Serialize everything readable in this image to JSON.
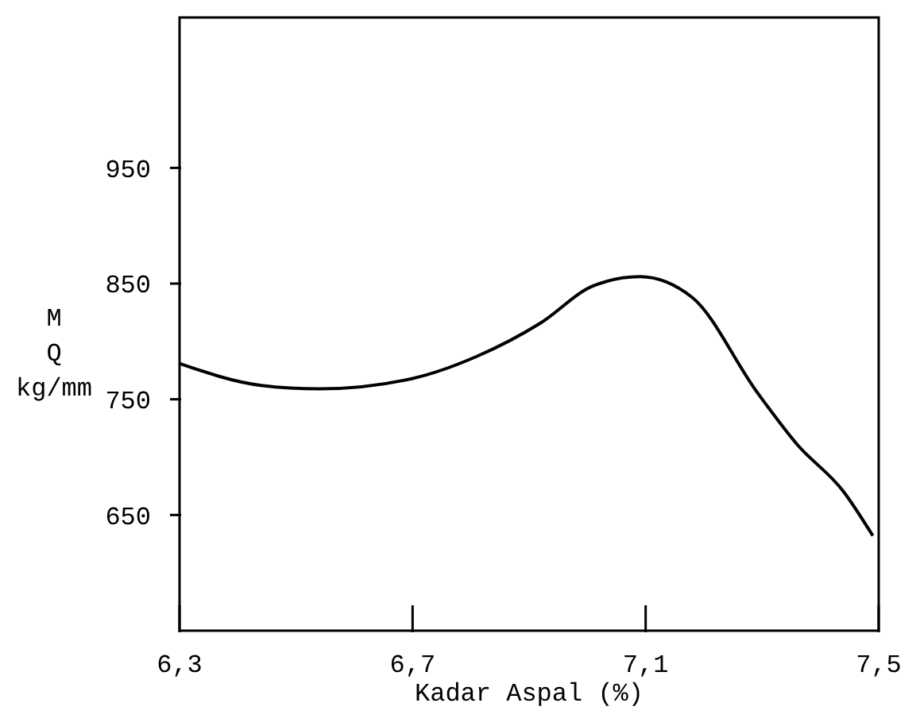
{
  "chart_data": {
    "type": "line",
    "xlabel": "Kadar Aspal (%)",
    "ylabel": "M\nQ\nkg/mm",
    "x": [
      6.3,
      6.44,
      6.54,
      6.7,
      6.81,
      6.92,
      7.01,
      7.09,
      7.18,
      7.29,
      7.36,
      7.44,
      7.49
    ],
    "series": [
      {
        "color": "#000000",
        "values": [
          781,
          762,
          759,
          768,
          787,
          816,
          848,
          856,
          838,
          757,
          711,
          670,
          632
        ]
      }
    ],
    "xlim": [
      6.3,
      7.5
    ],
    "xticks": [
      {
        "value": 6.3,
        "label": "6,3"
      },
      {
        "value": 6.7,
        "label": "6,7"
      },
      {
        "value": 7.1,
        "label": "7,1"
      },
      {
        "value": 7.5,
        "label": "7,5"
      }
    ],
    "ylim": [
      550,
      1080
    ],
    "yticks": [
      650,
      750,
      850,
      950
    ],
    "grid": false,
    "marker": "none",
    "line_style": "solid"
  }
}
